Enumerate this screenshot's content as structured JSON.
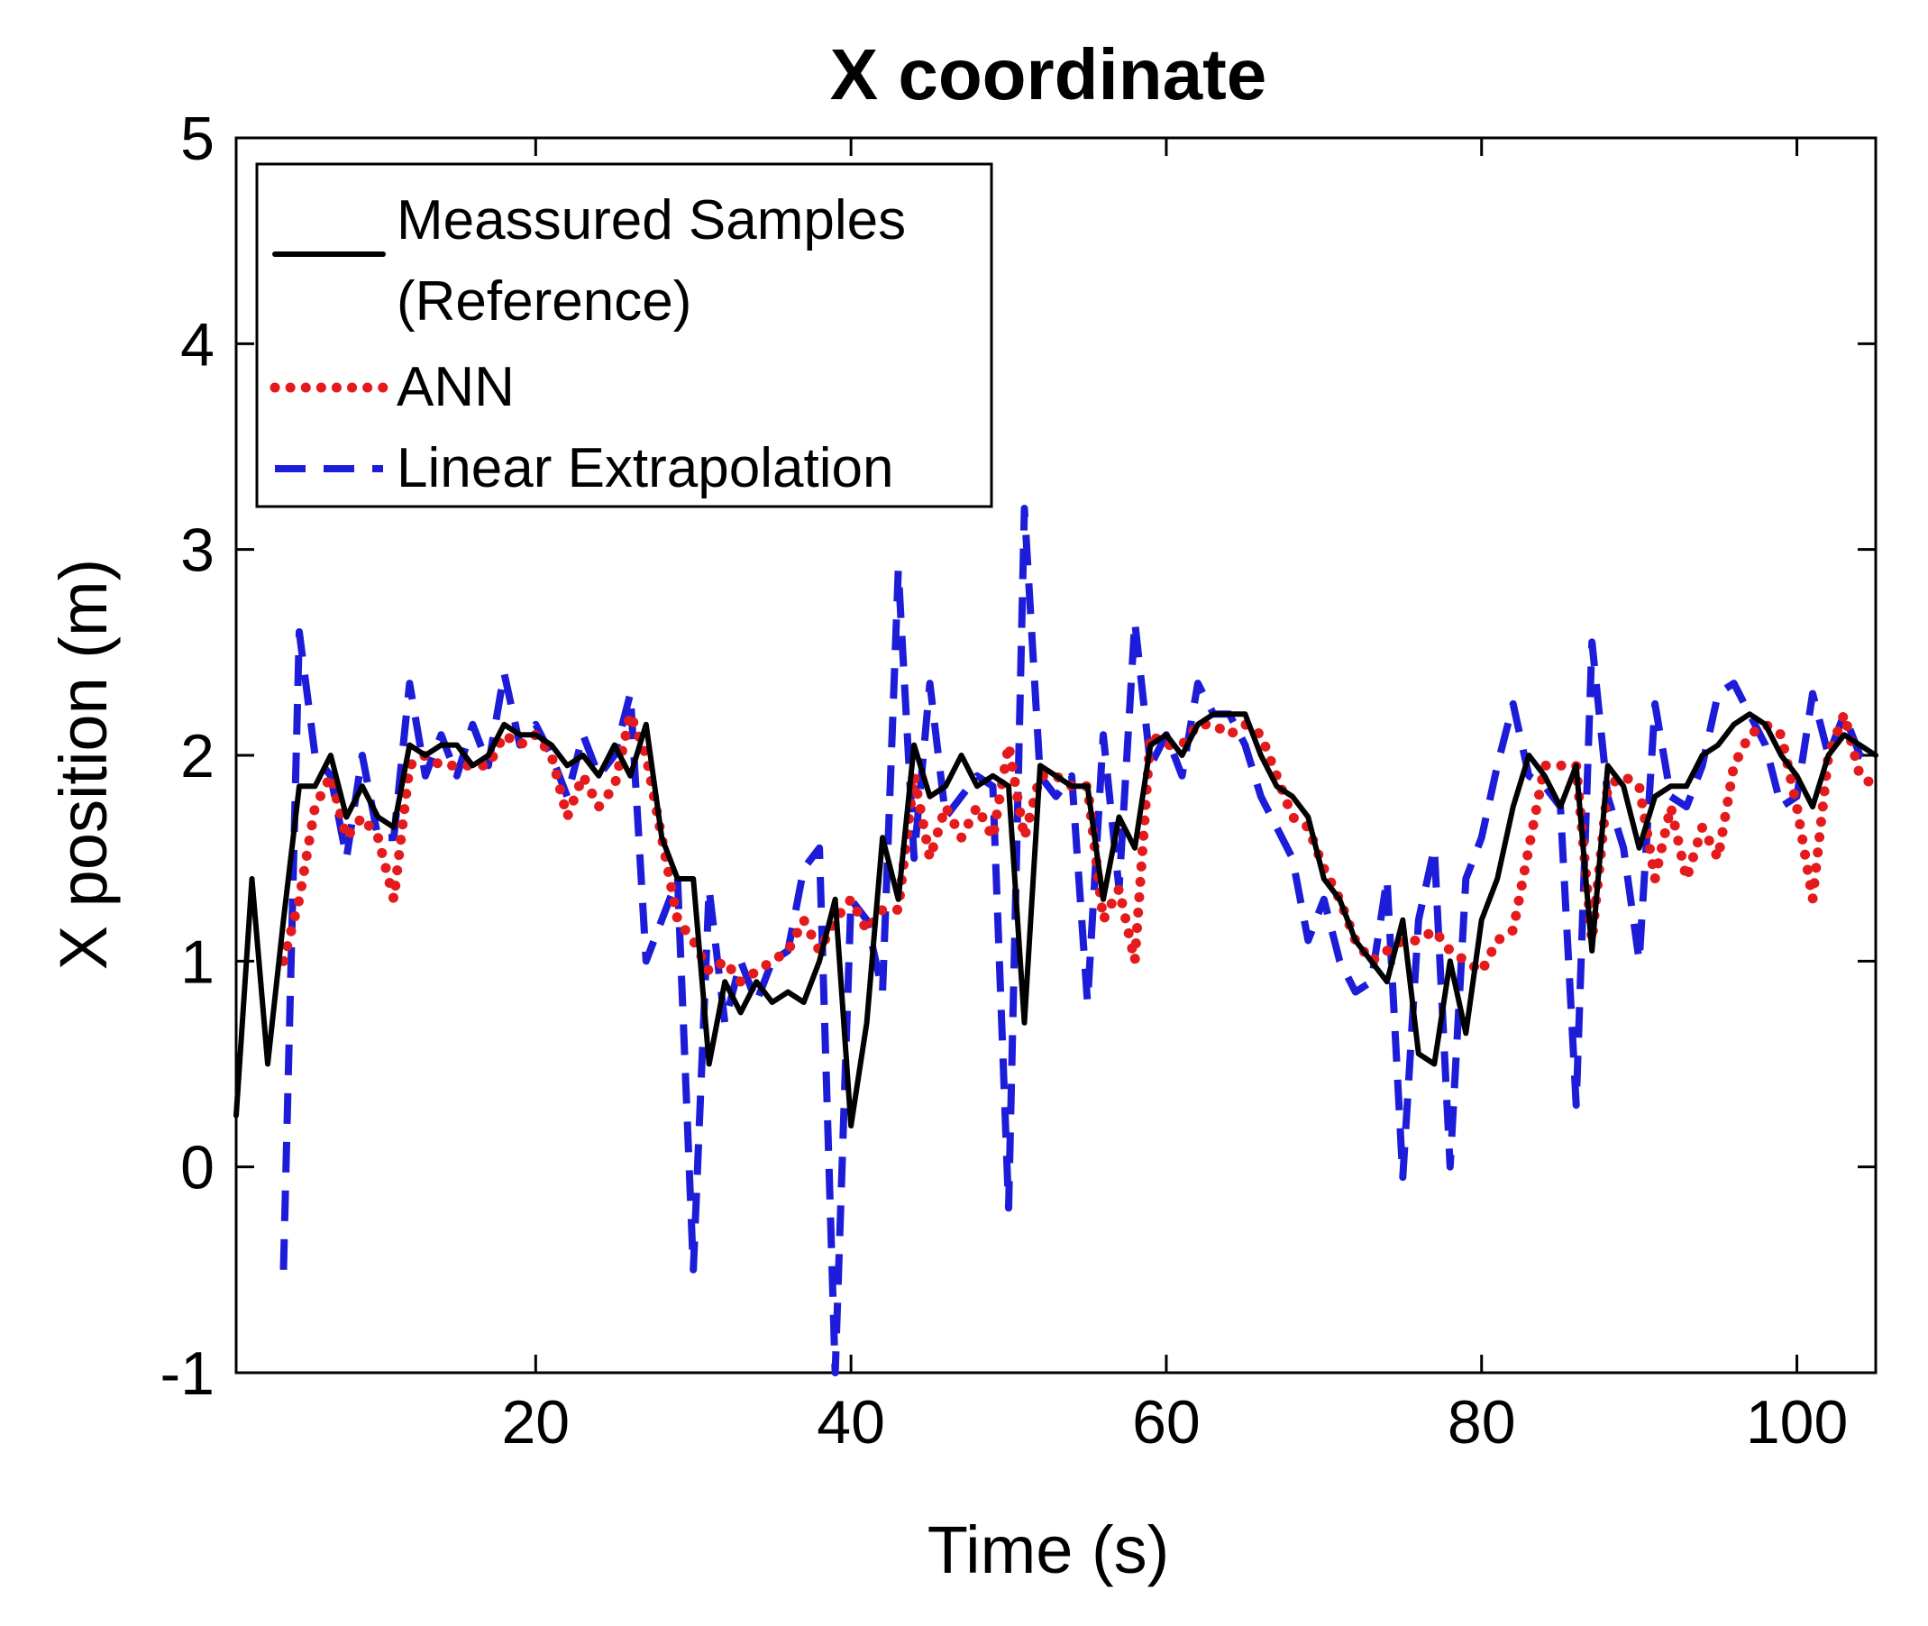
{
  "chart_data": {
    "type": "line",
    "title": "X coordinate",
    "xlabel": "Time (s)",
    "ylabel": "X position (m)",
    "xlim": [
      1,
      105
    ],
    "ylim": [
      -1,
      5
    ],
    "xticks": [
      20,
      40,
      60,
      80,
      100
    ],
    "xtick_labels": [
      "20",
      "40",
      "60",
      "80",
      "100"
    ],
    "yticks": [
      -1,
      0,
      1,
      2,
      3,
      4,
      5
    ],
    "ytick_labels": [
      "-1",
      "0",
      "1",
      "2",
      "3",
      "4",
      "5"
    ],
    "grid": false,
    "legend_position": "top-left",
    "series": [
      {
        "name": "Meassured Samples (Reference)",
        "legend_lines": [
          "Meassured Samples",
          "(Reference)"
        ],
        "color": "#000000",
        "style": "solid",
        "x": [
          1,
          2,
          3,
          4,
          5,
          6,
          7,
          8,
          9,
          10,
          11,
          12,
          13,
          14,
          15,
          16,
          17,
          18,
          19,
          20,
          21,
          22,
          23,
          24,
          25,
          26,
          27,
          28,
          29,
          30,
          31,
          32,
          33,
          34,
          35,
          36,
          37,
          38,
          39,
          40,
          41,
          42,
          43,
          44,
          45,
          46,
          47,
          48,
          49,
          50,
          51,
          52,
          53,
          54,
          55,
          56,
          57,
          58,
          59,
          60,
          61,
          62,
          63,
          64,
          65,
          66,
          67,
          68,
          69,
          70,
          71,
          72,
          73,
          74,
          75,
          76,
          77,
          78,
          79,
          80,
          81,
          82,
          83,
          84,
          85,
          86,
          87,
          88,
          89,
          90,
          91,
          92,
          93,
          94,
          95,
          96,
          97,
          98,
          99,
          100,
          101,
          102,
          103,
          104,
          105
        ],
        "values": [
          0.25,
          1.4,
          0.5,
          1.2,
          1.85,
          1.85,
          2.0,
          1.7,
          1.85,
          1.7,
          1.65,
          2.05,
          2.0,
          2.05,
          2.05,
          1.95,
          2.0,
          2.15,
          2.1,
          2.1,
          2.05,
          1.95,
          2.0,
          1.9,
          2.05,
          1.9,
          2.15,
          1.6,
          1.4,
          1.4,
          0.5,
          0.9,
          0.75,
          0.9,
          0.8,
          0.85,
          0.8,
          1.0,
          1.3,
          0.2,
          0.7,
          1.6,
          1.3,
          2.05,
          1.8,
          1.85,
          2.0,
          1.85,
          1.9,
          1.85,
          0.7,
          1.95,
          1.9,
          1.85,
          1.85,
          1.3,
          1.7,
          1.55,
          2.05,
          2.1,
          2.0,
          2.15,
          2.2,
          2.2,
          2.2,
          2.0,
          1.85,
          1.8,
          1.7,
          1.4,
          1.3,
          1.1,
          1.0,
          0.9,
          1.2,
          0.55,
          0.5,
          1.0,
          0.65,
          1.2,
          1.4,
          1.75,
          2.0,
          1.9,
          1.75,
          1.95,
          1.05,
          1.95,
          1.85,
          1.55,
          1.8,
          1.85,
          1.85,
          2.0,
          2.05,
          2.15,
          2.2,
          2.15,
          2.0,
          1.9,
          1.75,
          2.0,
          2.1,
          2.05,
          2.0
        ]
      },
      {
        "name": "ANN",
        "legend_lines": [
          "ANN"
        ],
        "color": "#e41a1c",
        "style": "dotted",
        "x": [
          4,
          5,
          6,
          7,
          8,
          9,
          10,
          11,
          12,
          13,
          14,
          15,
          16,
          17,
          18,
          19,
          20,
          21,
          22,
          23,
          24,
          25,
          26,
          27,
          28,
          29,
          30,
          31,
          32,
          33,
          34,
          35,
          36,
          37,
          38,
          39,
          40,
          41,
          42,
          43,
          44,
          45,
          46,
          47,
          48,
          49,
          50,
          51,
          52,
          53,
          54,
          55,
          56,
          57,
          58,
          59,
          60,
          61,
          62,
          63,
          64,
          65,
          66,
          67,
          68,
          69,
          70,
          71,
          72,
          73,
          74,
          75,
          76,
          77,
          78,
          79,
          80,
          81,
          82,
          83,
          84,
          85,
          86,
          87,
          88,
          89,
          90,
          91,
          92,
          93,
          94,
          95,
          96,
          97,
          98,
          99,
          100,
          101,
          102,
          103,
          104,
          105
        ],
        "values": [
          1.0,
          1.3,
          1.75,
          1.9,
          1.6,
          1.7,
          1.6,
          1.3,
          1.95,
          2.0,
          1.95,
          1.95,
          1.95,
          1.95,
          2.1,
          2.05,
          2.1,
          2.0,
          1.7,
          1.9,
          1.75,
          1.85,
          2.2,
          2.0,
          1.6,
          1.2,
          1.1,
          0.95,
          1.0,
          0.9,
          0.95,
          1.0,
          1.05,
          1.2,
          1.05,
          1.2,
          1.3,
          1.15,
          1.25,
          1.25,
          1.9,
          1.5,
          1.75,
          1.6,
          1.75,
          1.6,
          2.05,
          1.6,
          1.9,
          1.9,
          1.85,
          1.85,
          1.2,
          1.35,
          1.0,
          2.1,
          2.05,
          2.05,
          2.15,
          2.15,
          2.1,
          2.15,
          2.1,
          1.9,
          1.7,
          1.65,
          1.45,
          1.3,
          1.1,
          1.0,
          1.05,
          1.1,
          1.1,
          1.15,
          1.05,
          1.0,
          0.95,
          1.1,
          1.15,
          1.55,
          1.95,
          1.95,
          1.95,
          1.1,
          1.85,
          1.9,
          1.85,
          1.4,
          1.75,
          1.4,
          1.65,
          1.5,
          1.95,
          2.1,
          2.15,
          2.1,
          1.75,
          1.3,
          2.0,
          2.2,
          1.9,
          1.85
        ]
      },
      {
        "name": "Linear Extrapolation",
        "legend_lines": [
          "Linear Extrapolation"
        ],
        "color": "#1c1cd9",
        "style": "dashed",
        "x": [
          4,
          5,
          6,
          7,
          8,
          9,
          10,
          11,
          12,
          13,
          14,
          15,
          16,
          17,
          18,
          19,
          20,
          21,
          22,
          23,
          24,
          25,
          26,
          27,
          28,
          29,
          30,
          31,
          32,
          33,
          34,
          35,
          36,
          37,
          38,
          39,
          40,
          41,
          42,
          43,
          44,
          45,
          46,
          47,
          48,
          49,
          50,
          51,
          52,
          53,
          54,
          55,
          56,
          57,
          58,
          59,
          60,
          61,
          62,
          63,
          64,
          65,
          66,
          67,
          68,
          69,
          70,
          71,
          72,
          73,
          74,
          75,
          76,
          77,
          78,
          79,
          80,
          81,
          82,
          83,
          84,
          85,
          86,
          87,
          88,
          89,
          90,
          91,
          92,
          93,
          94,
          95,
          96,
          97,
          98,
          99,
          100,
          101,
          102,
          103,
          104,
          105
        ],
        "values": [
          -0.5,
          2.6,
          2.0,
          1.9,
          1.5,
          2.0,
          1.6,
          1.6,
          2.35,
          1.9,
          2.1,
          1.9,
          2.15,
          1.95,
          2.4,
          2.05,
          2.15,
          2.0,
          1.8,
          2.1,
          1.9,
          2.0,
          2.3,
          1.0,
          1.2,
          1.4,
          -0.5,
          1.35,
          0.7,
          1.0,
          0.8,
          1.0,
          1.05,
          1.45,
          1.55,
          -1.0,
          1.3,
          1.2,
          0.85,
          2.9,
          1.5,
          2.35,
          1.7,
          1.8,
          1.9,
          1.85,
          -0.2,
          3.2,
          1.9,
          1.8,
          1.9,
          0.8,
          2.1,
          1.35,
          2.65,
          1.95,
          2.1,
          1.9,
          2.35,
          2.2,
          2.2,
          2.05,
          1.8,
          1.65,
          1.5,
          1.1,
          1.3,
          1.0,
          0.85,
          0.9,
          1.4,
          -0.05,
          1.2,
          1.55,
          0.0,
          1.4,
          1.6,
          1.95,
          2.25,
          1.9,
          1.85,
          1.75,
          0.3,
          2.55,
          1.8,
          1.55,
          1.0,
          2.25,
          1.8,
          1.75,
          1.95,
          2.3,
          2.35,
          2.2,
          2.05,
          1.75,
          1.8,
          2.3,
          2.0,
          2.2,
          2.0,
          1.95
        ]
      }
    ]
  }
}
